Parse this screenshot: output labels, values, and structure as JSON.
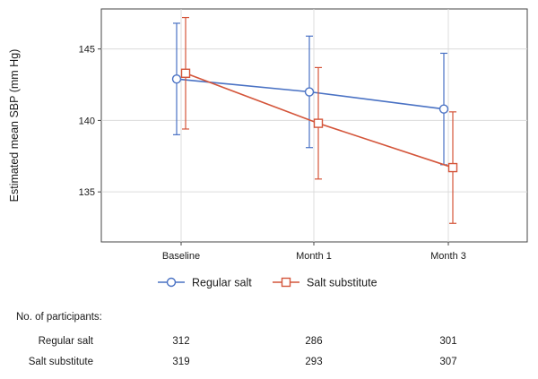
{
  "chart_data": {
    "type": "line",
    "title": "",
    "xlabel": "",
    "ylabel": "Estimated mean SBP (mm Hg)",
    "categories": [
      "Baseline",
      "Month 1",
      "Month 3"
    ],
    "ylim": [
      131.5,
      147.8
    ],
    "yticks": [
      135,
      140,
      145
    ],
    "grid": true,
    "legend_placement": "bottom",
    "series": [
      {
        "name": "Regular salt",
        "color": "#4a72c4",
        "marker": "circle",
        "values": [
          142.9,
          142.0,
          140.8
        ],
        "ci_lower": [
          139.0,
          138.1,
          136.9
        ],
        "ci_upper": [
          146.8,
          145.9,
          144.7
        ]
      },
      {
        "name": "Salt substitute",
        "color": "#d4553a",
        "marker": "square",
        "values": [
          143.3,
          139.8,
          136.7
        ],
        "ci_lower": [
          139.4,
          135.9,
          132.8
        ],
        "ci_upper": [
          147.2,
          143.7,
          140.6
        ]
      }
    ]
  },
  "participants_table": {
    "heading": "No. of participants:",
    "rows": [
      {
        "label": "Regular salt",
        "values": [
          "312",
          "286",
          "301"
        ]
      },
      {
        "label": "Salt substitute",
        "values": [
          "319",
          "293",
          "307"
        ]
      }
    ]
  }
}
